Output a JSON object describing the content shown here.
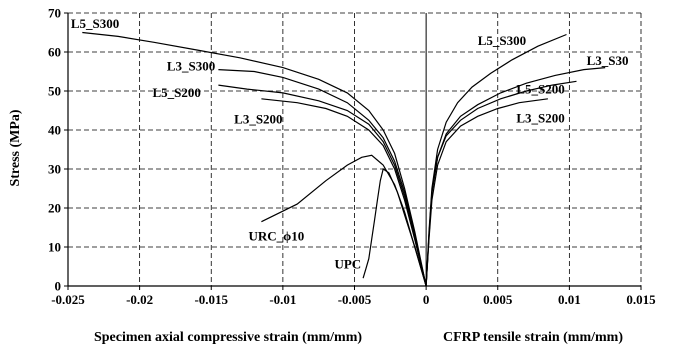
{
  "chart_data": {
    "type": "line",
    "title": "",
    "ylabel": "Stress (MPa)",
    "xlabel_left": "Specimen axial compressive strain (mm/mm)",
    "xlabel_right": "CFRP tensile strain (mm/mm)",
    "xlim": [
      -0.025,
      0.015
    ],
    "ylim": [
      0,
      70
    ],
    "grid": true,
    "x_ticks": [
      "-0.025",
      "-0.02",
      "-0.015",
      "-0.01",
      "-0.005",
      "0",
      "0.005",
      "0.01",
      "0.015"
    ],
    "x_tick_values": [
      -0.025,
      -0.02,
      -0.015,
      -0.01,
      -0.005,
      0,
      0.005,
      0.01,
      0.015
    ],
    "y_ticks": [
      "0",
      "10",
      "20",
      "30",
      "40",
      "50",
      "60",
      "70"
    ],
    "y_tick_values": [
      0,
      10,
      20,
      30,
      40,
      50,
      60,
      70
    ],
    "series": [
      {
        "name": "L5_S300",
        "side": "compressive",
        "x": [
          0,
          -0.0008,
          -0.0015,
          -0.0022,
          -0.003,
          -0.004,
          -0.0055,
          -0.0075,
          -0.01,
          -0.013,
          -0.016,
          -0.019,
          -0.0215,
          -0.024
        ],
        "y": [
          0,
          14,
          25,
          34,
          40,
          45,
          49.5,
          53,
          56,
          58.5,
          60.5,
          62.5,
          64,
          65
        ]
      },
      {
        "name": "L3_S300",
        "side": "compressive",
        "x": [
          0,
          -0.0008,
          -0.0015,
          -0.0022,
          -0.003,
          -0.004,
          -0.0055,
          -0.0075,
          -0.01,
          -0.012,
          -0.0145
        ],
        "y": [
          0,
          13,
          24,
          32,
          38,
          42.5,
          47,
          50.5,
          53.5,
          55,
          55.5
        ]
      },
      {
        "name": "L5_S200",
        "side": "compressive",
        "x": [
          0,
          -0.0008,
          -0.0015,
          -0.0022,
          -0.003,
          -0.004,
          -0.0055,
          -0.0075,
          -0.01,
          -0.0125,
          -0.0145
        ],
        "y": [
          0,
          13,
          23,
          31,
          37,
          41.5,
          45,
          47.5,
          49.5,
          50.5,
          51.5
        ]
      },
      {
        "name": "L3_S200",
        "side": "compressive",
        "x": [
          0,
          -0.0008,
          -0.0015,
          -0.0022,
          -0.003,
          -0.004,
          -0.0055,
          -0.007,
          -0.009,
          -0.0115
        ],
        "y": [
          0,
          12,
          22,
          30,
          36,
          40,
          43.5,
          45.5,
          47,
          48
        ]
      },
      {
        "name": "URC_ϕ10",
        "side": "compressive",
        "x": [
          0,
          -0.0008,
          -0.0015,
          -0.0022,
          -0.003,
          -0.0038,
          -0.0045,
          -0.0055,
          -0.007,
          -0.009,
          -0.0115
        ],
        "y": [
          0,
          10,
          19,
          26,
          31,
          33.5,
          33,
          31,
          27,
          21,
          16.5
        ]
      },
      {
        "name": "UPC",
        "side": "compressive",
        "x": [
          0,
          -0.0007,
          -0.0014,
          -0.002,
          -0.0026,
          -0.003,
          -0.0032,
          -0.0034,
          -0.0036,
          -0.0038,
          -0.004,
          -0.0042,
          -0.0044
        ],
        "y": [
          0,
          9,
          17,
          24,
          29,
          30,
          27,
          22,
          17,
          12,
          7,
          4.5,
          2
        ]
      },
      {
        "name": "L5_S300",
        "side": "tensile",
        "x": [
          0,
          0.0002,
          0.0004,
          0.0008,
          0.0014,
          0.0022,
          0.0032,
          0.0045,
          0.006,
          0.0078,
          0.0098
        ],
        "y": [
          0,
          14,
          25,
          35,
          42,
          47,
          51,
          54.5,
          58,
          61.5,
          64.5
        ]
      },
      {
        "name": "L3_S30",
        "side": "tensile",
        "x": [
          0,
          0.0002,
          0.0004,
          0.0008,
          0.0014,
          0.0024,
          0.0036,
          0.0052,
          0.007,
          0.009,
          0.011,
          0.0125
        ],
        "y": [
          0,
          13,
          24,
          33,
          39,
          43.5,
          46.5,
          49.5,
          52,
          54,
          55.5,
          56
        ]
      },
      {
        "name": "L5_S200",
        "side": "tensile",
        "x": [
          0,
          0.0002,
          0.0004,
          0.0008,
          0.0014,
          0.0024,
          0.0036,
          0.0052,
          0.007,
          0.0088,
          0.0105
        ],
        "y": [
          0,
          13,
          24,
          33,
          38.5,
          42.5,
          45.5,
          48,
          50,
          51.5,
          52.5
        ]
      },
      {
        "name": "L3_S200",
        "side": "tensile",
        "x": [
          0,
          0.0002,
          0.0004,
          0.0008,
          0.0014,
          0.0024,
          0.0036,
          0.005,
          0.0065,
          0.0085
        ],
        "y": [
          0,
          12,
          22,
          31,
          37,
          41,
          43.5,
          45.5,
          47,
          48
        ]
      }
    ],
    "labels": [
      {
        "text": "L5_S300",
        "x": -0.0248,
        "y": 66.2
      },
      {
        "text": "L3_S300",
        "x": -0.0181,
        "y": 55.2
      },
      {
        "text": "L5_S200",
        "x": -0.0191,
        "y": 48.5
      },
      {
        "text": "L3_S200",
        "x": -0.0134,
        "y": 41.7
      },
      {
        "text": "URC_ϕ10",
        "x": -0.0124,
        "y": 11.7
      },
      {
        "text": "UPC",
        "x": -0.0064,
        "y": 4.5
      },
      {
        "text": "L5_S300",
        "x": 0.0036,
        "y": 61.8
      },
      {
        "text": "L3_S30",
        "x": 0.0112,
        "y": 56.7
      },
      {
        "text": "L5_S200",
        "x": 0.0063,
        "y": 49.3
      },
      {
        "text": "L3_S200",
        "x": 0.0063,
        "y": 41.9
      }
    ]
  }
}
